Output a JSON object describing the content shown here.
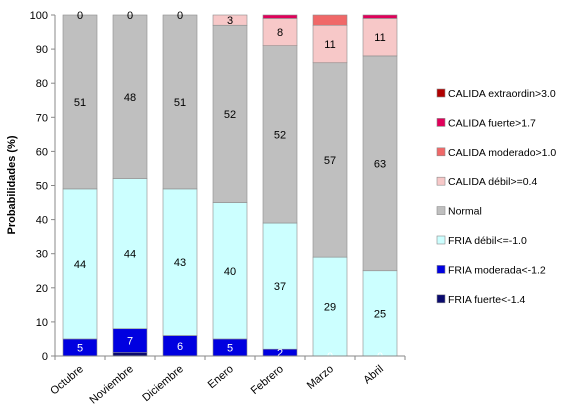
{
  "chart_data": {
    "type": "bar",
    "stacked": true,
    "title": "",
    "xlabel": "",
    "ylabel": "Probabilidades (%)",
    "ylim": [
      0,
      100
    ],
    "yticks": [
      "0",
      "10",
      "20",
      "30",
      "40",
      "50",
      "60",
      "70",
      "80",
      "90",
      "100"
    ],
    "categories": [
      "Octubre",
      "Noviembre",
      "Diciembre",
      "Enero",
      "Febrero",
      "Marzo",
      "Abril"
    ],
    "legend_position": "right",
    "series": [
      {
        "name": "FRIA fuerte<-1.4",
        "color": "#0a0a6e",
        "values": [
          0,
          1,
          0,
          0,
          0,
          0,
          0
        ],
        "labels": [
          "",
          "",
          "",
          "",
          "",
          "",
          ""
        ]
      },
      {
        "name": "FRIA moderada<-1.2",
        "color": "#0000e0",
        "values": [
          5,
          7,
          6,
          5,
          2,
          0,
          0
        ],
        "labels": [
          "5",
          "7",
          "6",
          "5",
          "2",
          "0",
          "0"
        ]
      },
      {
        "name": "FRIA débil<=-1.0",
        "color": "#ccffff",
        "values": [
          44,
          44,
          43,
          40,
          37,
          29,
          25
        ],
        "labels": [
          "44",
          "44",
          "43",
          "40",
          "37",
          "29",
          "25"
        ]
      },
      {
        "name": "Normal",
        "color": "#bfbfbf",
        "values": [
          51,
          48,
          51,
          52,
          52,
          57,
          63
        ],
        "labels": [
          "51",
          "48",
          "51",
          "52",
          "52",
          "57",
          "63"
        ]
      },
      {
        "name": "CALIDA débil>=0.4",
        "color": "#f7c8c8",
        "values": [
          0,
          0,
          0,
          3,
          8,
          11,
          11
        ],
        "labels": [
          "0",
          "0",
          "0",
          "3",
          "8",
          "11",
          "11"
        ]
      },
      {
        "name": "CALIDA moderado>1.0",
        "color": "#f06868",
        "values": [
          0,
          0,
          0,
          0,
          0,
          3,
          0
        ],
        "labels": [
          "",
          "",
          "",
          "",
          "",
          "",
          ""
        ]
      },
      {
        "name": "CALIDA fuerte>1.7",
        "color": "#e0005a",
        "values": [
          0,
          0,
          0,
          0,
          1,
          0,
          1
        ],
        "labels": [
          "",
          "",
          "",
          "",
          "",
          "",
          ""
        ]
      },
      {
        "name": "CALIDA extraordin>3.0",
        "color": "#b00000",
        "values": [
          0,
          0,
          0,
          0,
          0,
          0,
          0
        ],
        "labels": [
          "",
          "",
          "",
          "",
          "",
          "",
          ""
        ]
      }
    ]
  }
}
